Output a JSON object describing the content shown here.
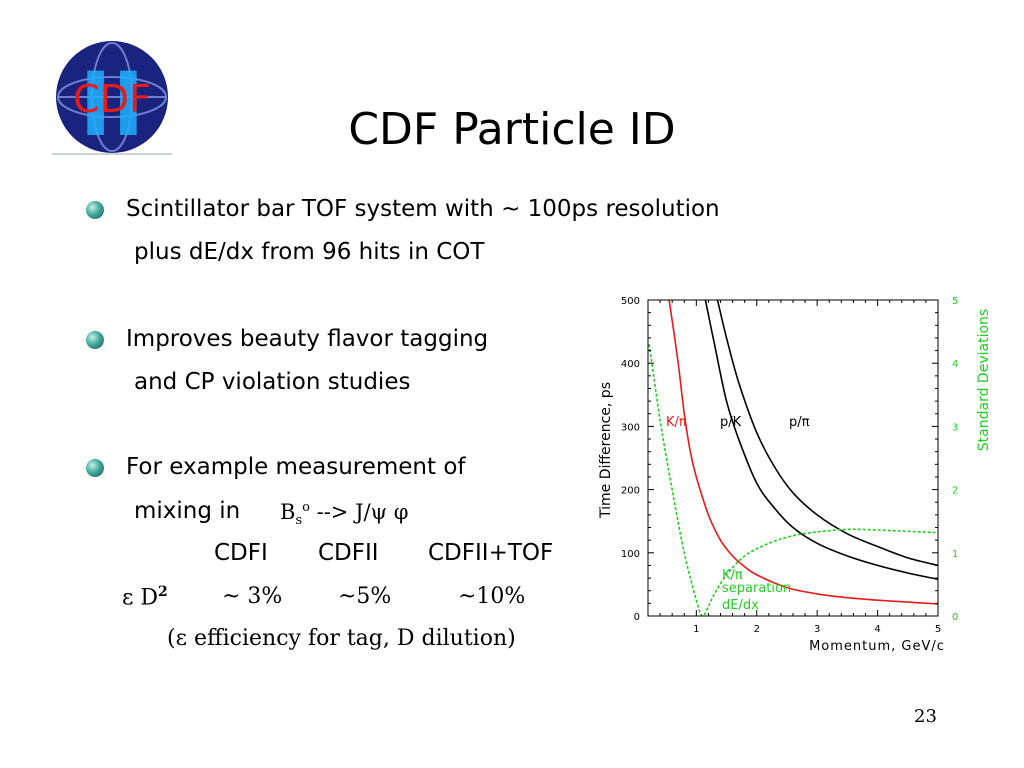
{
  "logo": {
    "text": "CDF",
    "roman": "II"
  },
  "title": "CDF Particle ID",
  "bullets": [
    {
      "line1": "Scintillator bar TOF system with ~ 100ps resolution",
      "line2": "plus dE/dx from 96 hits in COT"
    },
    {
      "line1": "Improves beauty flavor tagging",
      "line2": "and CP violation studies"
    },
    {
      "line1": "For example measurement of",
      "line2_prefix": "mixing in"
    }
  ],
  "decay": {
    "B": "B",
    "sub": "s",
    "sup": "o",
    "arrow": " --> J/ψ  φ"
  },
  "table": {
    "headers": [
      "CDFI",
      "CDFII",
      "CDFII+TOF"
    ],
    "row_label_eps": "ε D",
    "row_label_pow": "2",
    "values": [
      "~ 3%",
      "~5%",
      "~10%"
    ],
    "note": "(ε efficiency for tag, D dilution)"
  },
  "page_number": "23",
  "chart_data": {
    "type": "line",
    "xlabel": "Momentum, GeV/c",
    "ylabel": "Time Difference, ps",
    "y2label": "Standard Deviations",
    "xlim": [
      0.2,
      5
    ],
    "ylim": [
      0,
      500
    ],
    "y2lim": [
      0,
      5
    ],
    "xticks": [
      "1",
      "2",
      "3",
      "4",
      "5"
    ],
    "yticks": [
      "0",
      "100",
      "200",
      "300",
      "400",
      "500"
    ],
    "y2ticks": [
      "0",
      "1",
      "2",
      "3",
      "4",
      "5"
    ],
    "colors": {
      "kpi": "#e8191a",
      "pk": "#000000",
      "ppi": "#000000",
      "dedx": "#22cc22",
      "axis": "#000000",
      "y2axis": "#22cc22"
    },
    "series": [
      {
        "name": "K/π",
        "axis": "left",
        "style": "solid",
        "color": "#e8191a",
        "x": [
          0.55,
          0.7,
          0.8,
          0.9,
          1.0,
          1.2,
          1.4,
          1.6,
          1.8,
          2.0,
          2.5,
          3.0,
          3.5,
          4.0,
          4.5,
          5.0
        ],
        "y": [
          500,
          400,
          320,
          260,
          220,
          160,
          120,
          95,
          78,
          65,
          45,
          35,
          29,
          25,
          22,
          19
        ]
      },
      {
        "name": "p/K",
        "axis": "left",
        "style": "solid",
        "color": "#000000",
        "x": [
          1.15,
          1.3,
          1.5,
          1.7,
          2.0,
          2.3,
          2.6,
          3.0,
          3.5,
          4.0,
          4.5,
          5.0
        ],
        "y": [
          500,
          430,
          340,
          280,
          210,
          170,
          140,
          115,
          95,
          80,
          68,
          58
        ]
      },
      {
        "name": "p/π",
        "axis": "left",
        "style": "solid",
        "color": "#000000",
        "x": [
          1.35,
          1.5,
          1.7,
          2.0,
          2.3,
          2.6,
          3.0,
          3.5,
          4.0,
          4.5,
          5.0
        ],
        "y": [
          500,
          440,
          370,
          290,
          235,
          195,
          160,
          130,
          110,
          92,
          80
        ]
      },
      {
        "name": "K/π separation dE/dx",
        "axis": "right",
        "style": "dashed",
        "color": "#22cc22",
        "x": [
          0.22,
          0.4,
          0.6,
          0.8,
          1.0,
          1.1,
          1.2,
          1.3,
          1.5,
          1.8,
          2.2,
          2.6,
          3.0,
          3.5,
          4.0,
          4.5,
          5.0
        ],
        "y": [
          4.3,
          3.1,
          2.0,
          1.0,
          0.25,
          0.0,
          0.15,
          0.35,
          0.65,
          0.95,
          1.15,
          1.27,
          1.33,
          1.37,
          1.36,
          1.34,
          1.32
        ]
      }
    ],
    "annotations": [
      {
        "text": "K/π",
        "color": "#e8191a"
      },
      {
        "text": "p/K",
        "color": "#000000"
      },
      {
        "text": "p/π",
        "color": "#000000"
      },
      {
        "text": "K/π",
        "color": "#22cc22"
      },
      {
        "text": "separation",
        "color": "#22cc22"
      },
      {
        "text": "dE/dx",
        "color": "#22cc22"
      }
    ]
  }
}
